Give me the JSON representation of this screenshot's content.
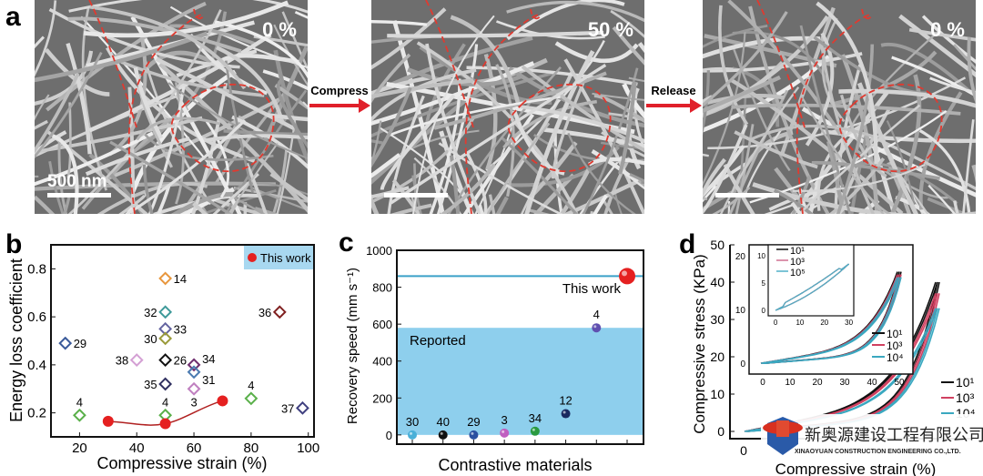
{
  "panel_a": {
    "label": "a",
    "images": [
      {
        "strain_label": "0 %",
        "scale_bar": "500 nm"
      },
      {
        "strain_label": "50 %",
        "scale_bar": ""
      },
      {
        "strain_label": "0 %",
        "scale_bar": ""
      }
    ],
    "arrows": [
      "Compress",
      "Release"
    ],
    "arrow_color": "#e0202a",
    "fiber_outline_color": "#e03a30"
  },
  "chart_data": [
    {
      "panel": "b",
      "type": "scatter",
      "xlabel": "Compressive strain (%)",
      "ylabel": "Energy loss coefficient",
      "xlim": [
        10,
        102
      ],
      "ylim": [
        0.1,
        0.9
      ],
      "xticks": [
        20,
        40,
        60,
        80,
        100
      ],
      "yticks": [
        0.2,
        0.4,
        0.6,
        0.8
      ],
      "legend": {
        "label": "This work",
        "placement": "top-right",
        "background": "#a8d8f0"
      },
      "reported": [
        {
          "ref": "14",
          "x": 50,
          "y": 0.76,
          "color": "#e8963c"
        },
        {
          "ref": "32",
          "x": 50,
          "y": 0.62,
          "color": "#3f9a9a"
        },
        {
          "ref": "33",
          "x": 50,
          "y": 0.55,
          "color": "#6464a0"
        },
        {
          "ref": "30",
          "x": 50,
          "y": 0.51,
          "color": "#9a9a3a"
        },
        {
          "ref": "26",
          "x": 50,
          "y": 0.42,
          "color": "#111111"
        },
        {
          "ref": "35",
          "x": 50,
          "y": 0.32,
          "color": "#303060"
        },
        {
          "ref": "4",
          "x": 50,
          "y": 0.19,
          "color": "#5ab04a"
        },
        {
          "ref": "29",
          "x": 15,
          "y": 0.49,
          "color": "#3a5a9a"
        },
        {
          "ref": "38",
          "x": 40,
          "y": 0.42,
          "color": "#d4a0d4"
        },
        {
          "ref": "34",
          "x": 60,
          "y": 0.4,
          "color": "#703070"
        },
        {
          "ref": "31",
          "x": 60,
          "y": 0.37,
          "color": "#4a7ab0"
        },
        {
          "ref": "3",
          "x": 60,
          "y": 0.3,
          "color": "#c080c0"
        },
        {
          "ref": "4",
          "x": 20,
          "y": 0.19,
          "color": "#5ab04a"
        },
        {
          "ref": "4",
          "x": 80,
          "y": 0.26,
          "color": "#5ab04a"
        },
        {
          "ref": "36",
          "x": 90,
          "y": 0.62,
          "color": "#802020"
        },
        {
          "ref": "37",
          "x": 98,
          "y": 0.22,
          "color": "#404080"
        }
      ],
      "this_work": {
        "name": "This work",
        "color": "#e52020",
        "x": [
          30,
          50,
          70
        ],
        "y": [
          0.165,
          0.155,
          0.25
        ]
      }
    },
    {
      "panel": "c",
      "type": "scatter",
      "xlabel": "Contrastive materials",
      "ylabel": "Recovery speed (mm s⁻¹)",
      "ylim": [
        -50,
        1000
      ],
      "yticks": [
        0,
        200,
        400,
        600,
        800,
        1000
      ],
      "categories": [
        "30",
        "40",
        "29",
        "3",
        "34",
        "12",
        "4",
        ""
      ],
      "values": [
        0,
        0,
        0,
        10,
        20,
        115,
        580,
        860
      ],
      "colors": [
        "#4ab0d8",
        "#111111",
        "#2a50a0",
        "#c060c0",
        "#2a9a40",
        "#1a2a60",
        "#6050b0",
        "#e52020"
      ],
      "reported_band": {
        "label": "Reported",
        "from": 0,
        "to": 580,
        "color": "#8ecfed"
      },
      "this_work": {
        "label": "This work",
        "value": 860,
        "line_color": "#3aa0c8"
      }
    },
    {
      "panel": "d",
      "type": "line",
      "xlabel": "Compressive strain (%)",
      "ylabel": "Compressive stress (KPa)",
      "ylim": [
        0,
        50
      ],
      "yticks": [
        0,
        10,
        20,
        30,
        40,
        50
      ],
      "xticks_visible": [
        0
      ],
      "series": [
        {
          "name": "10¹",
          "color": "#111111",
          "max_stress": 40
        },
        {
          "name": "10³",
          "color": "#d04060",
          "max_stress": 37
        },
        {
          "name": "10⁴",
          "color": "#3aa8c0",
          "max_stress": 33
        }
      ],
      "inset": {
        "xlim": [
          -5,
          55
        ],
        "ylim": [
          -2,
          22
        ],
        "xticks": [
          0,
          10,
          20,
          30,
          40,
          50
        ],
        "yticks": [
          0,
          10,
          20
        ],
        "max_strain": 50,
        "max_stress": 17,
        "series": [
          {
            "name": "10¹",
            "color": "#111111"
          },
          {
            "name": "10³",
            "color": "#d04060"
          },
          {
            "name": "10⁴",
            "color": "#3aa8c0"
          }
        ]
      },
      "inset2": {
        "xlim": [
          -3,
          32
        ],
        "ylim": [
          -1,
          12
        ],
        "xticks": [
          0,
          10,
          20,
          30
        ],
        "yticks": [
          0,
          5,
          10
        ],
        "max_strain": 30,
        "max_stress": 8.5,
        "series": [
          {
            "name": "10¹",
            "color": "#111111"
          },
          {
            "name": "10³",
            "color": "#d07090"
          },
          {
            "name": "10⁵",
            "color": "#50b0c8"
          }
        ]
      }
    }
  ],
  "panel_labels": [
    "b",
    "c",
    "d"
  ],
  "watermark": {
    "name_cn": "新奥源建设工程有限公司",
    "name_en": "XINAOYUAN CONSTRUCTION ENGINEERING CO.,LTD."
  }
}
